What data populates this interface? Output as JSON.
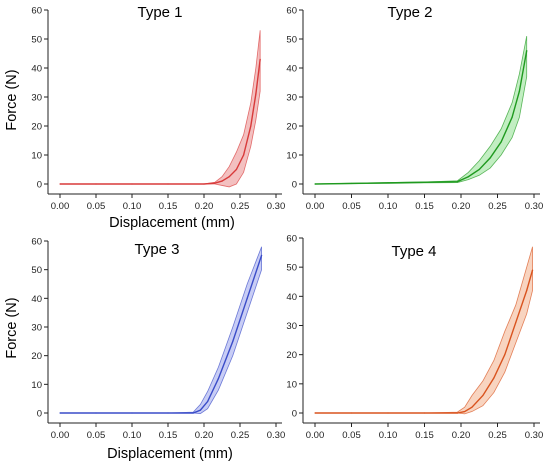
{
  "chart_data": [
    {
      "type": "line",
      "title": "Type 1",
      "xlabel": "Displacement (mm)",
      "ylabel": "Force (N)",
      "xlim": [
        0,
        0.3
      ],
      "ylim": [
        0,
        60
      ],
      "xticks": [
        "0.00",
        "0.05",
        "0.10",
        "0.15",
        "0.20",
        "0.25",
        "0.30"
      ],
      "yticks": [
        "0",
        "10",
        "20",
        "30",
        "40",
        "50",
        "60"
      ],
      "color": "#d83a3a",
      "fill": "#e98c8c",
      "series": [
        {
          "x": [
            0.0,
            0.05,
            0.1,
            0.15,
            0.2,
            0.215,
            0.225,
            0.235,
            0.245,
            0.255,
            0.265,
            0.272,
            0.278
          ],
          "mean": [
            0,
            0,
            0,
            0,
            0,
            0.3,
            1.0,
            2.5,
            5.0,
            10.0,
            20.0,
            31.0,
            43.0
          ],
          "lower": [
            0,
            0,
            0,
            0,
            0,
            0,
            -0.5,
            -1.0,
            0,
            4.0,
            13.0,
            22.0,
            32.0
          ],
          "upper": [
            0,
            0,
            0,
            0,
            0,
            0.6,
            2.5,
            6.0,
            11.0,
            17.0,
            28.0,
            40.0,
            53.0
          ]
        }
      ]
    },
    {
      "type": "line",
      "title": "Type 2",
      "xlabel": "",
      "ylabel": "",
      "xlim": [
        0,
        0.3
      ],
      "ylim": [
        0,
        60
      ],
      "xticks": [
        "0.00",
        "0.05",
        "0.10",
        "0.15",
        "0.20",
        "0.25",
        "0.30"
      ],
      "yticks": [
        "0",
        "10",
        "20",
        "30",
        "40",
        "50",
        "60"
      ],
      "color": "#1f9a1f",
      "fill": "#8fe08f",
      "series": [
        {
          "x": [
            0.0,
            0.05,
            0.1,
            0.15,
            0.195,
            0.21,
            0.225,
            0.24,
            0.255,
            0.27,
            0.28,
            0.29
          ],
          "mean": [
            0,
            0.2,
            0.4,
            0.6,
            0.8,
            2.5,
            5.0,
            9.0,
            14.5,
            23.0,
            32.0,
            46.0
          ],
          "lower": [
            0,
            0.1,
            0.2,
            0.4,
            0.5,
            1.5,
            3.0,
            5.5,
            10.0,
            16.0,
            23.0,
            37.0
          ],
          "upper": [
            0,
            0.3,
            0.5,
            0.7,
            1.1,
            4.0,
            8.0,
            13.0,
            19.0,
            28.0,
            38.0,
            51.0
          ]
        }
      ]
    },
    {
      "type": "line",
      "title": "Type 3",
      "xlabel": "Displacement (mm)",
      "ylabel": "Force (N)",
      "xlim": [
        0,
        0.3
      ],
      "ylim": [
        0,
        60
      ],
      "xticks": [
        "0.00",
        "0.05",
        "0.10",
        "0.15",
        "0.20",
        "0.25",
        "0.30"
      ],
      "yticks": [
        "0",
        "10",
        "20",
        "30",
        "40",
        "50",
        "60"
      ],
      "color": "#3a4cc8",
      "fill": "#9aa4ec",
      "series": [
        {
          "x": [
            0.0,
            0.05,
            0.1,
            0.15,
            0.185,
            0.195,
            0.205,
            0.22,
            0.24,
            0.26,
            0.28
          ],
          "mean": [
            0,
            0,
            0,
            0,
            0,
            1.0,
            4.0,
            12.0,
            25.0,
            40.0,
            55.0
          ],
          "lower": [
            0,
            0,
            0,
            0,
            0,
            -0.2,
            1.5,
            8.0,
            20.0,
            35.0,
            50.0
          ],
          "upper": [
            0,
            0,
            0,
            0,
            0.3,
            3.0,
            7.5,
            16.0,
            30.0,
            45.0,
            58.0
          ]
        }
      ]
    },
    {
      "type": "line",
      "title": "Type 4",
      "xlabel": "",
      "ylabel": "",
      "xlim": [
        0,
        0.3
      ],
      "ylim": [
        0,
        60
      ],
      "xticks": [
        "0.00",
        "0.05",
        "0.10",
        "0.15",
        "0.20",
        "0.25",
        "0.30"
      ],
      "yticks": [
        "0",
        "10",
        "20",
        "30",
        "40",
        "50",
        "60"
      ],
      "color": "#d9531e",
      "fill": "#f2b08c",
      "series": [
        {
          "x": [
            0.0,
            0.05,
            0.1,
            0.15,
            0.195,
            0.205,
            0.215,
            0.23,
            0.245,
            0.26,
            0.275,
            0.29,
            0.298
          ],
          "mean": [
            0,
            0,
            0,
            0,
            0,
            0.5,
            2.0,
            6.0,
            12.0,
            20.0,
            31.0,
            42.0,
            49.0
          ],
          "lower": [
            0,
            0,
            0,
            0,
            0,
            -0.3,
            0.5,
            2.5,
            7.0,
            14.0,
            24.0,
            34.0,
            42.0
          ],
          "upper": [
            0,
            0,
            0,
            0,
            0.3,
            2.0,
            6.0,
            11.0,
            18.0,
            28.0,
            37.0,
            50.0,
            57.0
          ]
        }
      ]
    }
  ]
}
